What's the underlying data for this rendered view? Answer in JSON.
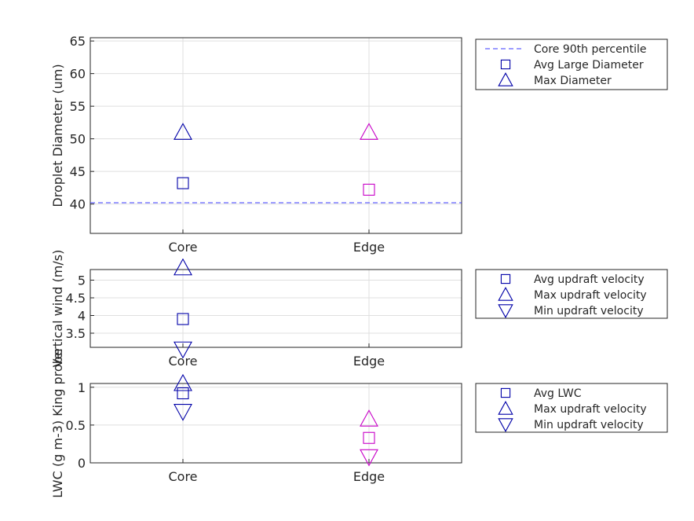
{
  "colors": {
    "core": "#0000a8",
    "edge": "#c800c8",
    "ref": "#3a3aff"
  },
  "chart_data": [
    {
      "type": "scatter",
      "categories": [
        "Core",
        "Edge"
      ],
      "ylabel": "Droplet Diameter (um)",
      "ylim": [
        35.5,
        65.5
      ],
      "yticks": [
        40,
        45,
        50,
        55,
        60,
        65
      ],
      "ytick_labels": [
        "40",
        "45",
        "50",
        "55",
        "60",
        "65"
      ],
      "grid": true,
      "legend_placement": "outside-right",
      "reference_line": {
        "name": "Core 90th percentile",
        "y": 40.2
      },
      "series": [
        {
          "name": "Avg Large Diameter",
          "marker": "square",
          "values": [
            43.2,
            42.2
          ]
        },
        {
          "name": "Max Diameter",
          "marker": "triangle-up",
          "values": [
            51.0,
            51.0
          ]
        }
      ]
    },
    {
      "type": "scatter",
      "categories": [
        "Core",
        "Edge"
      ],
      "ylabel": "Vertical wind (m/s)",
      "ylim": [
        3.1,
        5.3
      ],
      "yticks": [
        3.5,
        4,
        4.5,
        5
      ],
      "ytick_labels": [
        "3.5",
        "4",
        "4.5",
        "5"
      ],
      "grid": true,
      "legend_placement": "outside-right",
      "series": [
        {
          "name": "Avg updraft velocity",
          "marker": "square",
          "values": [
            3.9,
            null
          ]
        },
        {
          "name": "Max updraft velocity",
          "marker": "triangle-up",
          "values": [
            5.35,
            null
          ]
        },
        {
          "name": "Min updraft velocity",
          "marker": "triangle-down",
          "values": [
            3.05,
            null
          ]
        }
      ]
    },
    {
      "type": "scatter",
      "categories": [
        "Core",
        "Edge"
      ],
      "ylabel": "LWC (g m-3) King probe",
      "ylim": [
        0,
        1.05
      ],
      "yticks": [
        0,
        0.5,
        1
      ],
      "ytick_labels": [
        "0",
        "0.5",
        "1"
      ],
      "grid": true,
      "legend_placement": "outside-right",
      "series": [
        {
          "name": "Avg LWC",
          "marker": "square",
          "values": [
            0.92,
            0.33
          ]
        },
        {
          "name": "Max updraft velocity",
          "marker": "triangle-up",
          "values": [
            1.05,
            0.58
          ]
        },
        {
          "name": "Min updraft velocity",
          "marker": "triangle-down",
          "values": [
            0.68,
            0.08
          ]
        }
      ]
    }
  ]
}
